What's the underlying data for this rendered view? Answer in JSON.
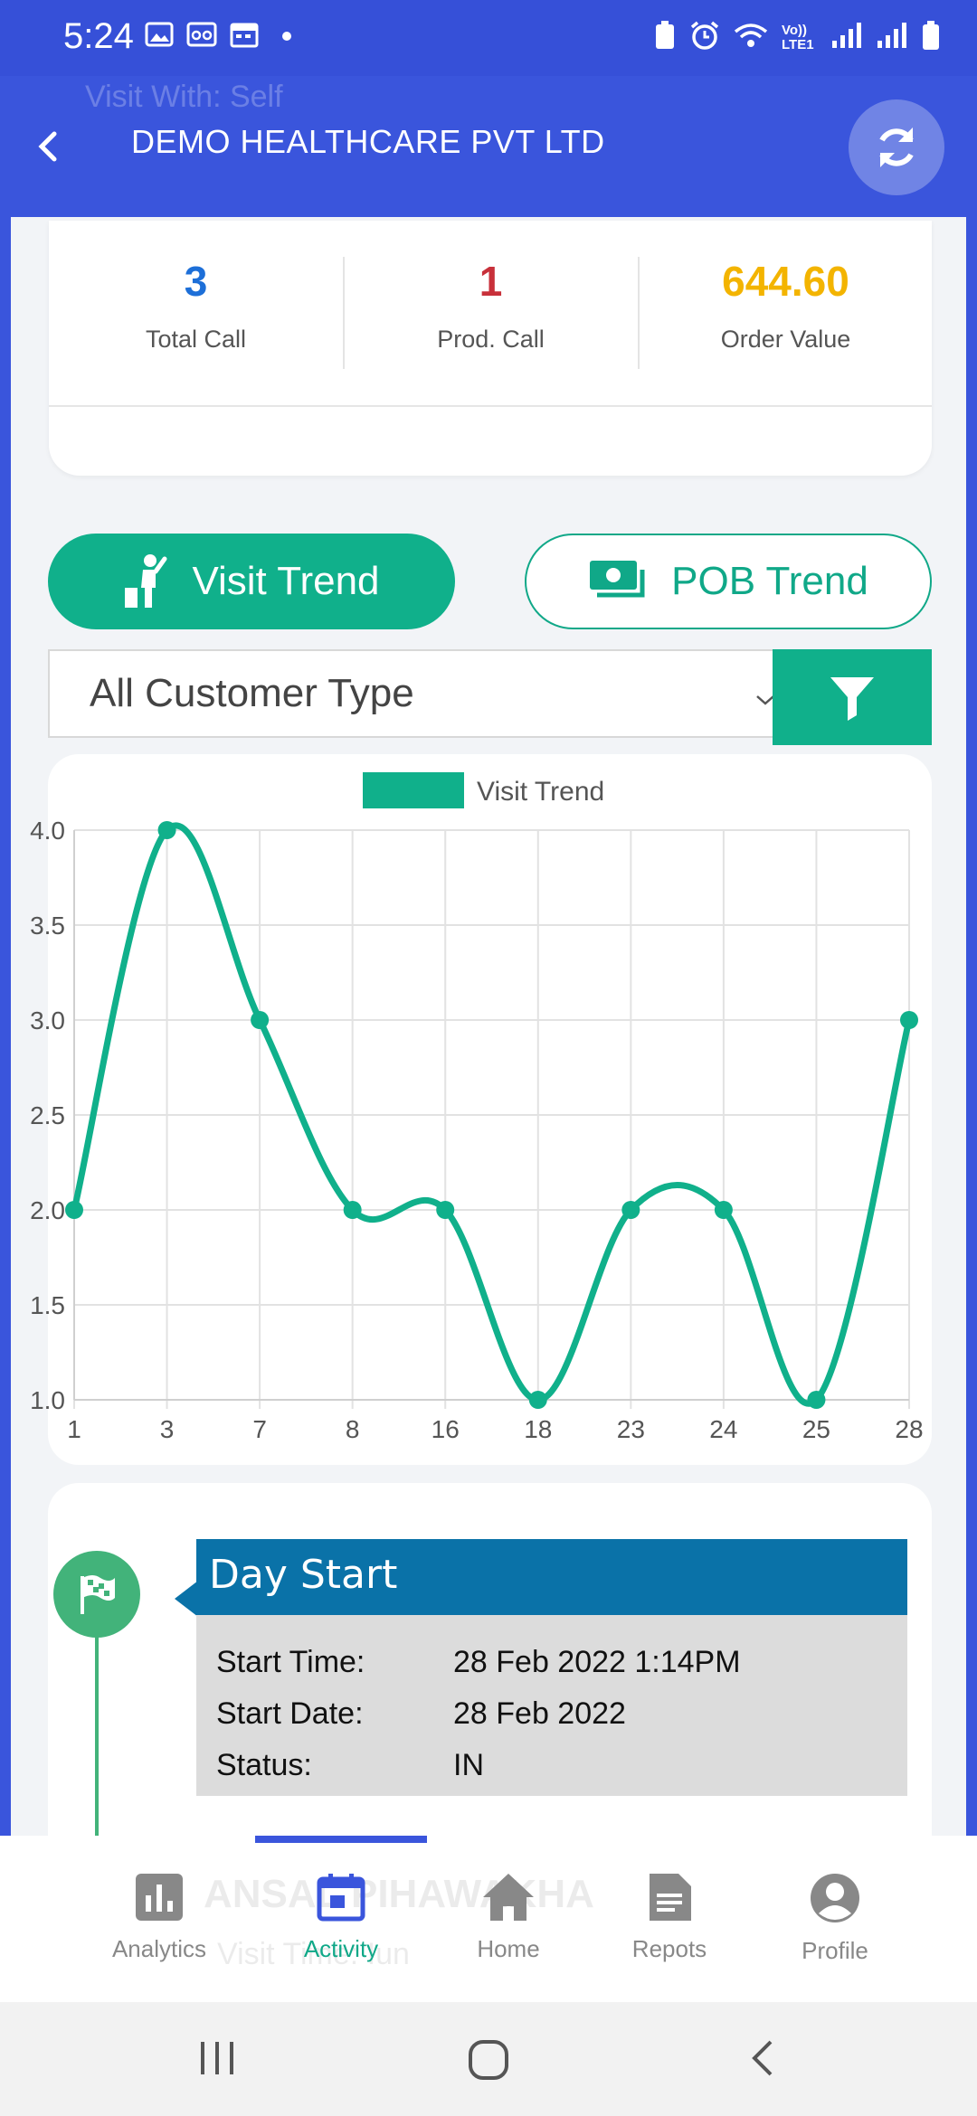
{
  "status_bar": {
    "time": "5:24",
    "net": "Vo)) LTE1"
  },
  "header": {
    "ghost_text": "Visit With:    Self",
    "title": "DEMO HEALTHCARE PVT LTD"
  },
  "stats": [
    {
      "value": "3",
      "label": "Total Call",
      "color": "#1d6fd8"
    },
    {
      "value": "1",
      "label": "Prod. Call",
      "color": "#c8303a"
    },
    {
      "value": "644.60",
      "label": "Order Value",
      "color": "#f3b400"
    }
  ],
  "buttons": {
    "visit_trend": "Visit Trend",
    "pob_trend": "POB Trend"
  },
  "filter": {
    "selected": "All Customer Type"
  },
  "chart_data": {
    "type": "line",
    "categories": [
      "1",
      "3",
      "7",
      "8",
      "16",
      "18",
      "23",
      "24",
      "25",
      "28"
    ],
    "series": [
      {
        "name": "Visit Trend",
        "values": [
          2,
          4,
          3,
          2,
          2,
          1,
          2,
          2,
          1,
          3
        ],
        "color": "#10b08b"
      }
    ],
    "yticks": [
      "1.0",
      "1.5",
      "2.0",
      "2.5",
      "3.0",
      "3.5",
      "4.0"
    ],
    "ylim": [
      1,
      4
    ],
    "grid": true,
    "legend": "top"
  },
  "timeline": {
    "title": "Day Start",
    "rows": [
      {
        "key": "Start Time:",
        "value": "28 Feb 2022 1:14PM"
      },
      {
        "key": "Start Date:",
        "value": "28 Feb 2022"
      },
      {
        "key": "Status:",
        "value": "IN"
      }
    ]
  },
  "bottom_nav": {
    "ghost": "ANSAL PIHAWAKHA",
    "ghost2": "Visit Time:         Iun",
    "items": [
      "Analytics",
      "Activity",
      "Home",
      "Repots",
      "Profile"
    ]
  }
}
